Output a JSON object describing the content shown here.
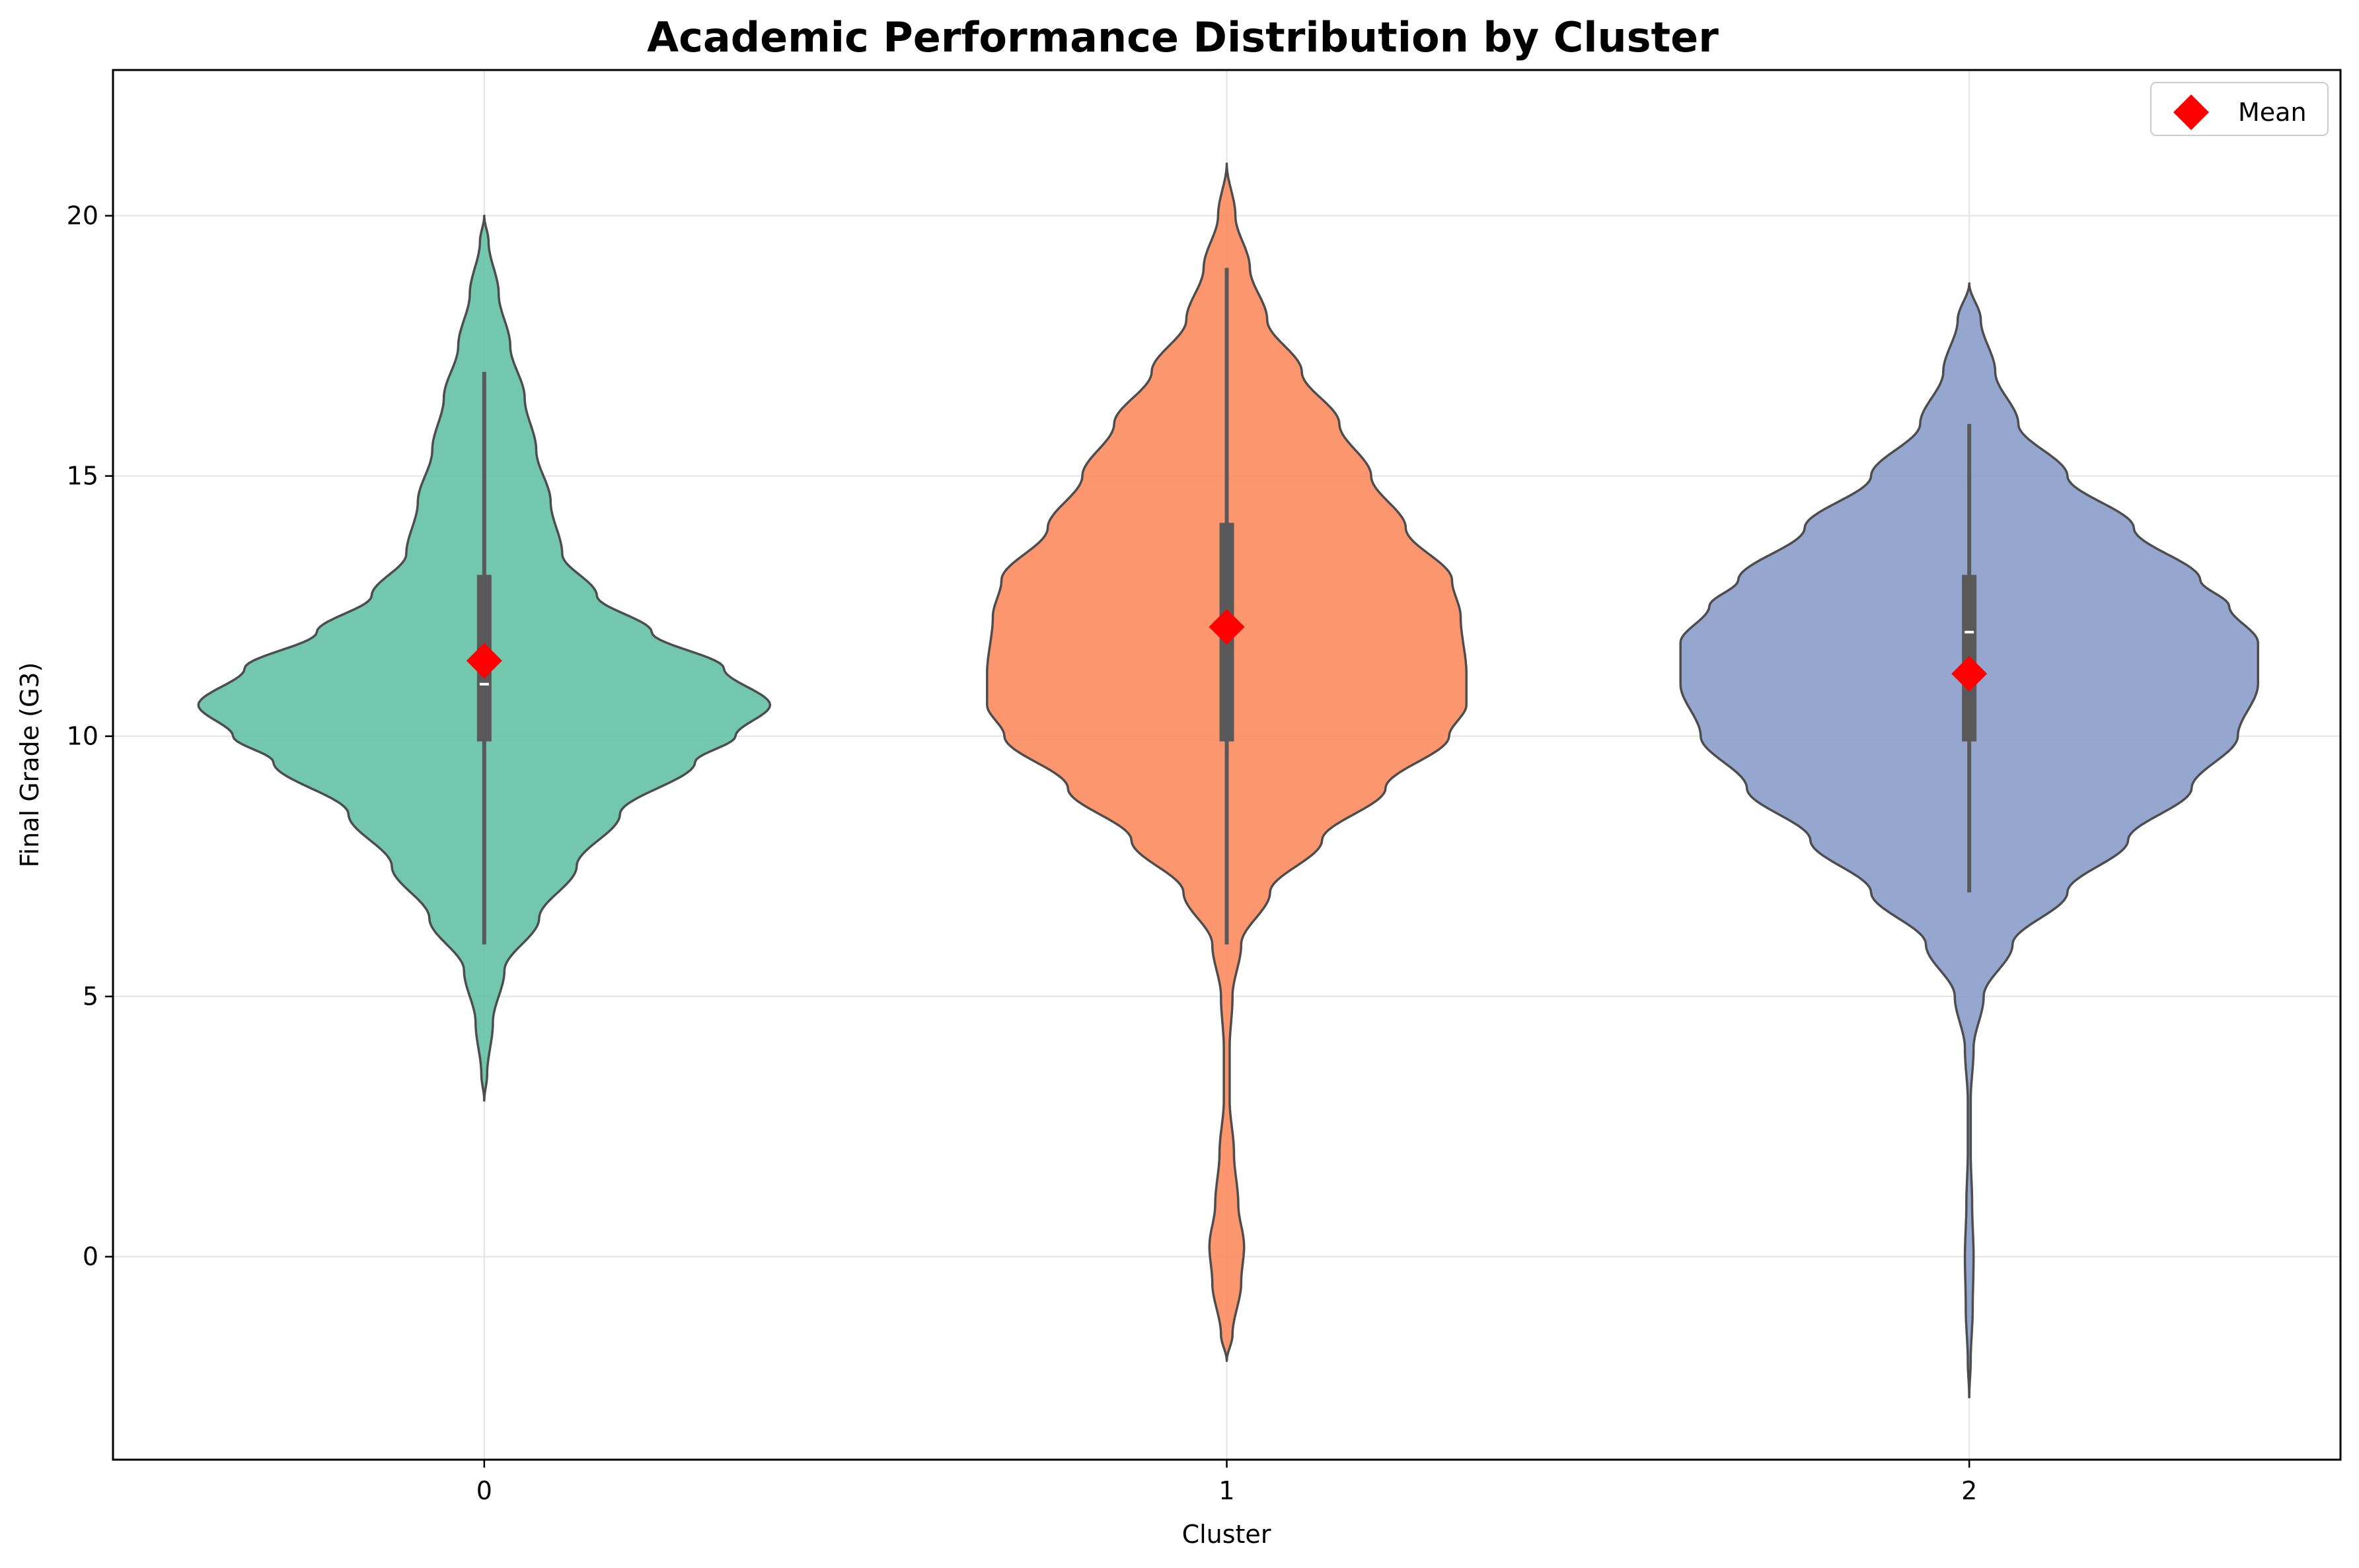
{
  "chart_data": {
    "type": "violin",
    "title": "Academic Performance Distribution by Cluster",
    "xlabel": "Cluster",
    "ylabel": "Final Grade (G3)",
    "categories": [
      "0",
      "1",
      "2"
    ],
    "y_ticks": [
      0,
      5,
      10,
      15,
      20
    ],
    "ylim": [
      -3.9,
      22.8
    ],
    "grid": true,
    "legend": {
      "position": "top-right",
      "entries": [
        {
          "label": "Mean",
          "marker": "diamond",
          "color": "#ff0000"
        }
      ]
    },
    "series": [
      {
        "cluster": "0",
        "color": "#66c2a5",
        "mean": 11.45,
        "median": 11,
        "q1": 9.9,
        "q3": 13.1,
        "whisker_low": 6,
        "whisker_high": 17,
        "density_profile": [
          [
            3.0,
            0.0
          ],
          [
            3.5,
            0.01
          ],
          [
            4.5,
            0.03
          ],
          [
            5.5,
            0.07
          ],
          [
            6.5,
            0.19
          ],
          [
            7.5,
            0.32
          ],
          [
            8.5,
            0.47
          ],
          [
            9.5,
            0.73
          ],
          [
            10.0,
            0.87
          ],
          [
            10.6,
            0.99
          ],
          [
            11.3,
            0.83
          ],
          [
            12.0,
            0.58
          ],
          [
            12.7,
            0.39
          ],
          [
            13.5,
            0.27
          ],
          [
            14.5,
            0.23
          ],
          [
            15.5,
            0.18
          ],
          [
            16.5,
            0.14
          ],
          [
            17.5,
            0.09
          ],
          [
            18.5,
            0.05
          ],
          [
            19.5,
            0.015
          ],
          [
            20.0,
            0.0
          ]
        ]
      },
      {
        "cluster": "1",
        "color": "#fc8d62",
        "mean": 12.1,
        "median": 12,
        "q1": 9.9,
        "q3": 14.1,
        "whisker_low": 6,
        "whisker_high": 19,
        "density_profile": [
          [
            -2.0,
            0.0
          ],
          [
            -1.5,
            0.02
          ],
          [
            -0.5,
            0.05
          ],
          [
            0.2,
            0.06
          ],
          [
            1.0,
            0.04
          ],
          [
            2.0,
            0.025
          ],
          [
            3.0,
            0.01
          ],
          [
            4.0,
            0.01
          ],
          [
            5.0,
            0.02
          ],
          [
            6.0,
            0.05
          ],
          [
            7.0,
            0.15
          ],
          [
            8.0,
            0.33
          ],
          [
            9.0,
            0.55
          ],
          [
            10.0,
            0.77
          ],
          [
            10.6,
            0.83
          ],
          [
            11.2,
            0.83
          ],
          [
            12.3,
            0.81
          ],
          [
            13.0,
            0.78
          ],
          [
            14.0,
            0.62
          ],
          [
            15.0,
            0.5
          ],
          [
            16.0,
            0.39
          ],
          [
            17.0,
            0.26
          ],
          [
            18.0,
            0.14
          ],
          [
            19.0,
            0.08
          ],
          [
            20.0,
            0.03
          ],
          [
            21.0,
            0.0
          ]
        ]
      },
      {
        "cluster": "2",
        "color": "#8da0cb",
        "mean": 11.2,
        "median": 12,
        "q1": 9.9,
        "q3": 13.1,
        "whisker_low": 7,
        "whisker_high": 16,
        "density_profile": [
          [
            -2.7,
            0.0
          ],
          [
            -2.0,
            0.005
          ],
          [
            -1.0,
            0.012
          ],
          [
            0.0,
            0.015
          ],
          [
            1.0,
            0.01
          ],
          [
            2.0,
            0.005
          ],
          [
            3.0,
            0.005
          ],
          [
            4.0,
            0.015
          ],
          [
            5.0,
            0.05
          ],
          [
            6.0,
            0.15
          ],
          [
            7.0,
            0.34
          ],
          [
            8.0,
            0.55
          ],
          [
            9.0,
            0.77
          ],
          [
            10.0,
            0.93
          ],
          [
            11.0,
            1.0
          ],
          [
            11.8,
            1.0
          ],
          [
            12.5,
            0.9
          ],
          [
            13.0,
            0.8
          ],
          [
            14.0,
            0.57
          ],
          [
            15.0,
            0.34
          ],
          [
            16.0,
            0.17
          ],
          [
            17.0,
            0.09
          ],
          [
            18.0,
            0.04
          ],
          [
            18.7,
            0.0
          ]
        ]
      }
    ]
  }
}
